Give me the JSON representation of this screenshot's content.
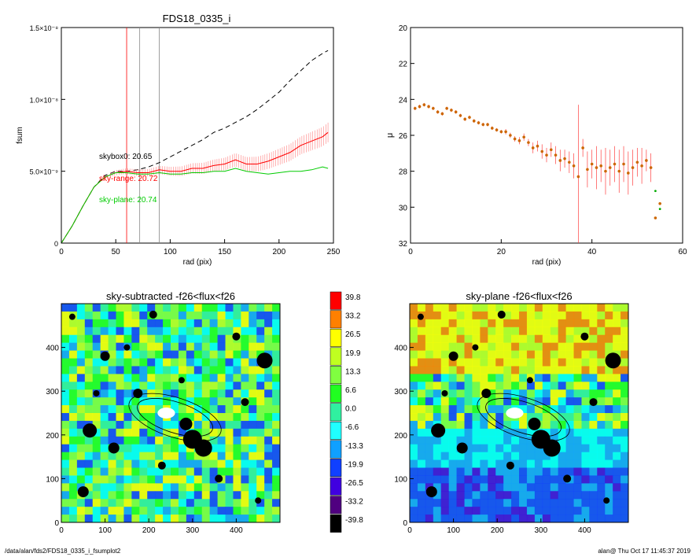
{
  "footer": {
    "path": "/data/alan/fds2/FDS18_0335_i_fsumplot2",
    "stamp": "alan@  Thu Oct 17 11:45:37 2019"
  },
  "chart_data": [
    {
      "type": "line",
      "title": "FDS18_0335_i",
      "xlabel": "rad (pix)",
      "ylabel": "fsum",
      "xlim": [
        0,
        250
      ],
      "ylim": [
        0,
        1.5e-08
      ],
      "xticks": [
        "0",
        "50",
        "100",
        "150",
        "200",
        "250"
      ],
      "yticks": [
        "0",
        "5.0×10⁻⁹",
        "1.0×10⁻⁸",
        "1.5×10⁻⁸"
      ],
      "vlines": [
        {
          "x": 60,
          "color": "#ff0000"
        },
        {
          "x": 72,
          "color": "#888888"
        },
        {
          "x": 90,
          "color": "#888888"
        }
      ],
      "annotations": [
        {
          "text": "skybox0: 20.65",
          "color": "#000000"
        },
        {
          "text": "sky-range: 20.72",
          "color": "#ff0000"
        },
        {
          "text": "sky-plane: 20.74",
          "color": "#00cc00"
        }
      ],
      "series": [
        {
          "color": "#000000",
          "style": "dashed",
          "x": [
            0,
            10,
            20,
            30,
            40,
            50,
            60,
            70,
            80,
            90,
            100,
            110,
            120,
            130,
            140,
            150,
            160,
            170,
            180,
            190,
            200,
            210,
            220,
            230,
            240,
            245
          ],
          "y": [
            0,
            1.2e-09,
            2.6e-09,
            3.9e-09,
            4.7e-09,
            5e-09,
            5e-09,
            5.1e-09,
            5.3e-09,
            5.6e-09,
            6e-09,
            6.4e-09,
            6.8e-09,
            7.2e-09,
            7.7e-09,
            8e-09,
            8.4e-09,
            8.8e-09,
            9.3e-09,
            9.9e-09,
            1.05e-08,
            1.13e-08,
            1.2e-08,
            1.27e-08,
            1.32e-08,
            1.34e-08
          ]
        },
        {
          "color": "#ff0000",
          "style": "solid",
          "errorbars": true,
          "x": [
            0,
            10,
            20,
            30,
            40,
            50,
            60,
            70,
            80,
            90,
            100,
            110,
            120,
            130,
            140,
            150,
            160,
            170,
            180,
            190,
            200,
            210,
            220,
            230,
            240,
            245
          ],
          "y": [
            0,
            1.2e-09,
            2.6e-09,
            3.9e-09,
            4.6e-09,
            4.9e-09,
            5e-09,
            4.9e-09,
            4.9e-09,
            5.1e-09,
            5e-09,
            5e-09,
            5.2e-09,
            5.2e-09,
            5.4e-09,
            5.5e-09,
            5.8e-09,
            5.5e-09,
            5.5e-09,
            5.7e-09,
            6e-09,
            6.3e-09,
            6.8e-09,
            7.1e-09,
            7.4e-09,
            7.7e-09
          ]
        },
        {
          "color": "#00cc00",
          "style": "solid",
          "x": [
            0,
            10,
            20,
            30,
            40,
            50,
            60,
            70,
            80,
            90,
            100,
            110,
            120,
            130,
            140,
            150,
            160,
            170,
            180,
            190,
            200,
            210,
            220,
            230,
            240,
            245
          ],
          "y": [
            0,
            1.2e-09,
            2.6e-09,
            3.9e-09,
            4.6e-09,
            4.9e-09,
            4.9e-09,
            4.8e-09,
            4.8e-09,
            4.9e-09,
            4.8e-09,
            4.8e-09,
            4.9e-09,
            4.9e-09,
            5e-09,
            5e-09,
            5.2e-09,
            5e-09,
            4.9e-09,
            4.8e-09,
            4.9e-09,
            5e-09,
            5e-09,
            5.1e-09,
            5.3e-09,
            5.2e-09
          ]
        }
      ]
    },
    {
      "type": "scatter",
      "xlabel": "rad (pix)",
      "ylabel": "μ",
      "xlim": [
        0,
        60
      ],
      "ylim": [
        32,
        20
      ],
      "xticks": [
        "0",
        "20",
        "40",
        "60"
      ],
      "yticks": [
        "20",
        "22",
        "24",
        "26",
        "28",
        "30",
        "32"
      ],
      "points": {
        "x": [
          1,
          2,
          3,
          4,
          5,
          6,
          7,
          8,
          9,
          10,
          11,
          12,
          13,
          14,
          15,
          16,
          17,
          18,
          19,
          20,
          21,
          22,
          23,
          24,
          25,
          26,
          27,
          28,
          29,
          30,
          31,
          32,
          33,
          34,
          35,
          36,
          37,
          38,
          39,
          40,
          41,
          42,
          43,
          44,
          45,
          46,
          47,
          48,
          49,
          50,
          51,
          52,
          53,
          54,
          55
        ],
        "y": [
          24.5,
          24.4,
          24.3,
          24.4,
          24.5,
          24.7,
          24.8,
          24.5,
          24.6,
          24.7,
          24.9,
          25.1,
          25.0,
          25.2,
          25.3,
          25.4,
          25.4,
          25.6,
          25.7,
          25.8,
          25.8,
          26.0,
          26.2,
          26.3,
          26.1,
          26.4,
          26.7,
          26.6,
          26.9,
          27.1,
          26.8,
          27.1,
          27.4,
          27.3,
          27.5,
          27.7,
          28.3,
          26.7,
          27.9,
          27.6,
          27.8,
          27.7,
          28.0,
          27.8,
          27.6,
          28.0,
          27.6,
          28.1,
          27.8,
          27.5,
          27.7,
          27.4,
          27.8,
          30.6,
          29.8
        ],
        "yerr": [
          0.1,
          0.1,
          0.1,
          0.1,
          0.1,
          0.1,
          0.1,
          0.1,
          0.1,
          0.1,
          0.1,
          0.1,
          0.1,
          0.1,
          0.1,
          0.1,
          0.1,
          0.1,
          0.1,
          0.1,
          0.15,
          0.15,
          0.15,
          0.2,
          0.2,
          0.2,
          0.3,
          0.3,
          0.4,
          0.4,
          0.4,
          0.5,
          0.6,
          0.5,
          0.6,
          0.7,
          4.0,
          0.5,
          1.0,
          0.8,
          1.2,
          0.9,
          1.3,
          1.0,
          1.0,
          1.2,
          1.0,
          1.2,
          1.0,
          0.8,
          1.0,
          0.6,
          0.8,
          0.0,
          0.0
        ],
        "color": "#cc6600"
      },
      "green_points": {
        "x": [
          54,
          55
        ],
        "y": [
          29.1,
          30.1
        ]
      }
    },
    {
      "type": "heatmap",
      "title": "sky-subtracted -f26<flux<f26",
      "xlim": [
        0,
        500
      ],
      "ylim": [
        0,
        500
      ],
      "xticks": [
        "0",
        "100",
        "200",
        "300",
        "400"
      ],
      "yticks": [
        "0",
        "100",
        "200",
        "300",
        "400"
      ]
    },
    {
      "type": "heatmap",
      "title": "sky-plane -f26<flux<f26",
      "xlim": [
        0,
        500
      ],
      "ylim": [
        0,
        500
      ],
      "xticks": [
        "0",
        "100",
        "200",
        "300",
        "400"
      ],
      "yticks": [
        "0",
        "100",
        "200",
        "300",
        "400"
      ]
    },
    {
      "type": "colorbar",
      "labels": [
        "39.8",
        "33.2",
        "26.5",
        "19.9",
        "13.3",
        "6.6",
        "0.0",
        "-6.6",
        "-13.3",
        "-19.9",
        "-26.5",
        "-33.2",
        "-39.8"
      ],
      "colors": [
        "#ff0000",
        "#ff8000",
        "#ffff00",
        "#c0ff20",
        "#80ff40",
        "#20ff20",
        "#30f0a0",
        "#20ffff",
        "#10a0ff",
        "#1040ff",
        "#4000e0",
        "#500080",
        "#000000"
      ]
    }
  ]
}
